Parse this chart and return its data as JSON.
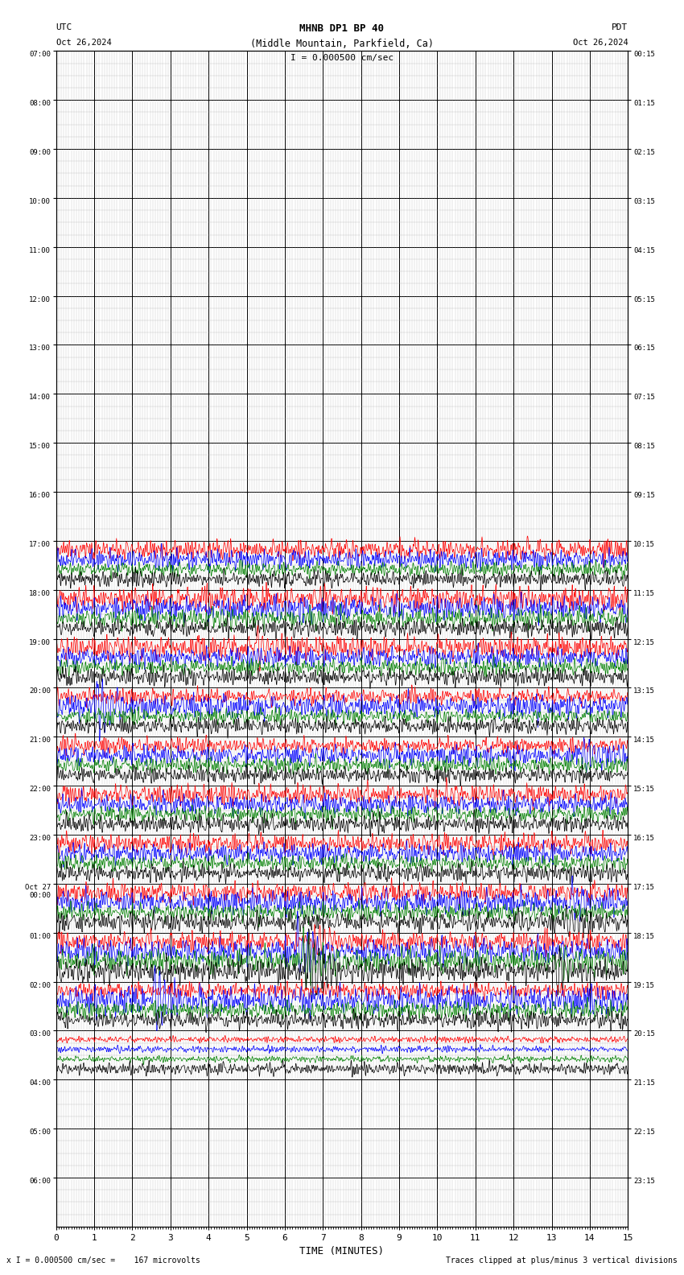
{
  "title_line1": "MHNB DP1 BP 40",
  "title_line2": "(Middle Mountain, Parkfield, Ca)",
  "scale_label": "I = 0.000500 cm/sec",
  "utc_label": "UTC",
  "pdt_label": "PDT",
  "date_left": "Oct 26,2024",
  "date_right": "Oct 26,2024",
  "footer_left": "x I = 0.000500 cm/sec =    167 microvolts",
  "footer_right": "Traces clipped at plus/minus 3 vertical divisions",
  "xlabel": "TIME (MINUTES)",
  "ytick_left": [
    "07:00",
    "08:00",
    "09:00",
    "10:00",
    "11:00",
    "12:00",
    "13:00",
    "14:00",
    "15:00",
    "16:00",
    "17:00",
    "18:00",
    "19:00",
    "20:00",
    "21:00",
    "22:00",
    "23:00",
    "Oct 27\n00:00",
    "01:00",
    "02:00",
    "03:00",
    "04:00",
    "05:00",
    "06:00"
  ],
  "ytick_right": [
    "00:15",
    "01:15",
    "02:15",
    "03:15",
    "04:15",
    "05:15",
    "06:15",
    "07:15",
    "08:15",
    "09:15",
    "10:15",
    "11:15",
    "12:15",
    "13:15",
    "14:15",
    "15:15",
    "16:15",
    "17:15",
    "18:15",
    "19:15",
    "20:15",
    "21:15",
    "22:15",
    "23:15"
  ],
  "n_rows": 24,
  "n_minutes": 15,
  "bg_color": "#ffffff",
  "grid_major_color": "#000000",
  "grid_minor_color": "#aaaaaa",
  "trace_colors_order": [
    "#ff0000",
    "#0000ff",
    "#008000",
    "#000000"
  ],
  "minor_divisions": 15
}
